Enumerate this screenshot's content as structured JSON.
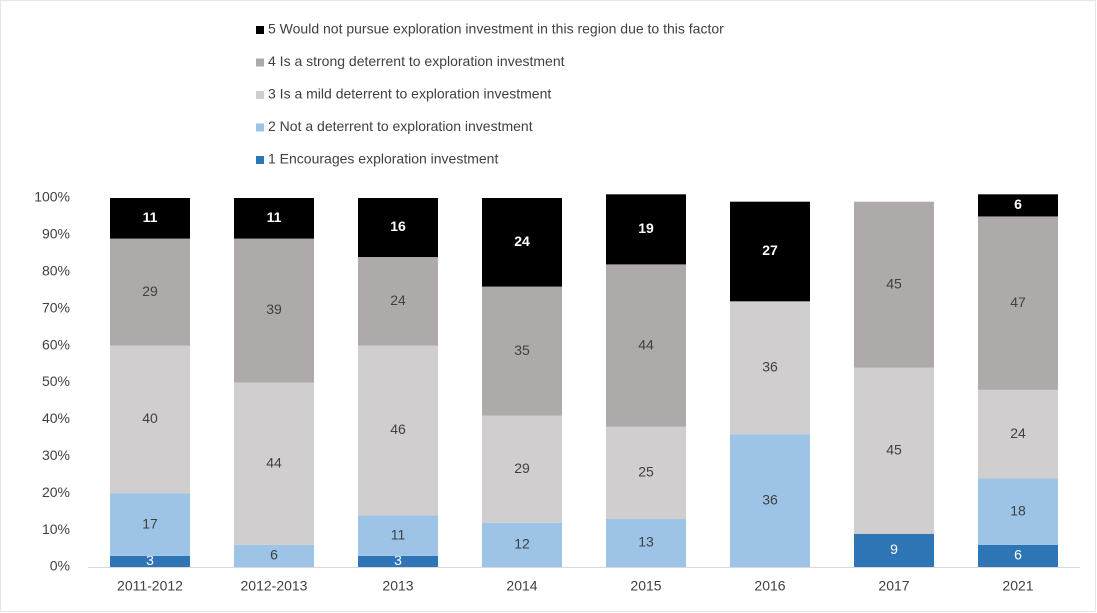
{
  "chart_data": {
    "type": "stacked_bar",
    "categories": [
      "2011-2012",
      "2012-2013",
      "2013",
      "2014",
      "2015",
      "2016",
      "2017",
      "2021"
    ],
    "series": [
      {
        "name": "1 Encourages exploration investment",
        "color": "#2e75b6",
        "values": [
          3,
          0,
          3,
          0,
          0,
          0,
          9,
          6
        ]
      },
      {
        "name": "2 Not a deterrent to exploration investment",
        "color": "#9dc3e6",
        "values": [
          17,
          6,
          11,
          12,
          13,
          36,
          0,
          18
        ]
      },
      {
        "name": "3 Is a mild deterrent to exploration investment",
        "color": "#d0cece",
        "values": [
          40,
          44,
          46,
          29,
          25,
          36,
          45,
          24
        ]
      },
      {
        "name": "4 Is a strong deterrent to exploration investment",
        "color": "#aeaaaa",
        "values": [
          29,
          39,
          24,
          35,
          44,
          0,
          45,
          47
        ]
      },
      {
        "name": "5 Would not pursue exploration investment in this region due to this factor",
        "color": "#000000",
        "values": [
          11,
          11,
          16,
          24,
          19,
          27,
          0,
          6
        ]
      }
    ],
    "ylim": [
      0,
      100
    ],
    "yticks": [
      {
        "value": 0,
        "label": "0%"
      },
      {
        "value": 10,
        "label": "10%"
      },
      {
        "value": 20,
        "label": "20%"
      },
      {
        "value": 30,
        "label": "30%"
      },
      {
        "value": 40,
        "label": "40%"
      },
      {
        "value": 50,
        "label": "50%"
      },
      {
        "value": 60,
        "label": "60%"
      },
      {
        "value": 70,
        "label": "70%"
      },
      {
        "value": 80,
        "label": "80%"
      },
      {
        "value": 90,
        "label": "90%"
      },
      {
        "value": 100,
        "label": "100%"
      }
    ],
    "legend": "top"
  }
}
